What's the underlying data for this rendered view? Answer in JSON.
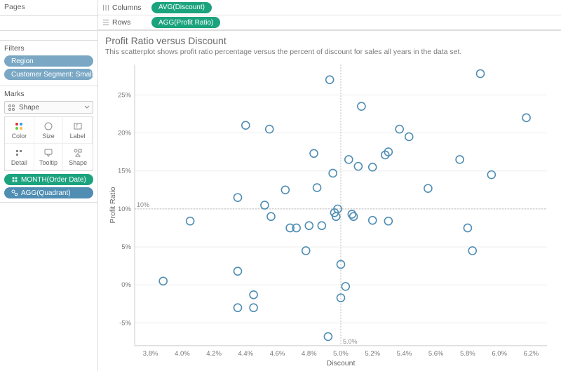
{
  "shelves": {
    "pages_label": "Pages",
    "filters_label": "Filters",
    "columns_label": "Columns",
    "rows_label": "Rows",
    "columns_pill": "AVG(Discount)",
    "rows_pill": "AGG(Profit Ratio)"
  },
  "filters": {
    "items": [
      "Region",
      "Customer Segment: Small Busin..."
    ]
  },
  "marks": {
    "title": "Marks",
    "shape_dropdown_icon_label": "Shape",
    "shape_dropdown_icon_prefix": "○○",
    "cells": [
      "Color",
      "Size",
      "Label",
      "Detail",
      "Tooltip",
      "Shape"
    ],
    "pills": [
      {
        "text": "MONTH(Order Date)",
        "color": "green",
        "icon": "color"
      },
      {
        "text": "AGG(Quadrant)",
        "color": "blue",
        "icon": "shape"
      }
    ]
  },
  "chart": {
    "title": "Profit Ratio versus Discount",
    "subtitle": "This scatterplot shows profit ratio percentage versus the percent of discount for sales all years in the data set.",
    "type": "scatter",
    "x_axis_title": "Discount",
    "y_axis_title": "Profit Ratio",
    "x_ticks": [
      3.8,
      4.0,
      4.2,
      4.4,
      4.6,
      4.8,
      5.0,
      5.2,
      5.4,
      5.6,
      5.8,
      6.0,
      6.2
    ],
    "x_tick_labels": [
      "3.8%",
      "4.0%",
      "4.2%",
      "4.4%",
      "4.6%",
      "4.8%",
      "5.0%",
      "5.2%",
      "5.4%",
      "5.6%",
      "5.8%",
      "6.0%",
      "6.2%"
    ],
    "xlim": [
      3.7,
      6.3
    ],
    "y_ticks": [
      -5,
      0,
      5,
      10,
      15,
      20,
      25
    ],
    "y_tick_labels": [
      "-5%",
      "0%",
      "5%",
      "10%",
      "15%",
      "20%",
      "25%"
    ],
    "ylim": [
      -8,
      29
    ],
    "ref_x": {
      "value": 5.0,
      "label": "5.0%"
    },
    "ref_y": {
      "value": 10.0,
      "label": "10%"
    },
    "marker_radius": 5.5,
    "marker_stroke": "#4f8db3",
    "background_color": "#ffffff",
    "points": [
      [
        3.88,
        0.5
      ],
      [
        4.05,
        8.4
      ],
      [
        4.35,
        11.5
      ],
      [
        4.35,
        1.8
      ],
      [
        4.35,
        -3.0
      ],
      [
        4.4,
        21.0
      ],
      [
        4.45,
        -3.0
      ],
      [
        4.45,
        -1.3
      ],
      [
        4.52,
        10.5
      ],
      [
        4.55,
        20.5
      ],
      [
        4.56,
        9.0
      ],
      [
        4.65,
        12.5
      ],
      [
        4.68,
        7.5
      ],
      [
        4.72,
        7.5
      ],
      [
        4.78,
        4.5
      ],
      [
        4.8,
        7.8
      ],
      [
        4.83,
        17.3
      ],
      [
        4.85,
        12.8
      ],
      [
        4.88,
        7.8
      ],
      [
        4.92,
        -6.8
      ],
      [
        4.93,
        27.0
      ],
      [
        4.95,
        14.7
      ],
      [
        4.96,
        9.5
      ],
      [
        4.97,
        9.0
      ],
      [
        4.98,
        10.0
      ],
      [
        5.0,
        2.7
      ],
      [
        5.0,
        -1.7
      ],
      [
        5.03,
        -0.2
      ],
      [
        5.05,
        16.5
      ],
      [
        5.07,
        9.3
      ],
      [
        5.08,
        9.0
      ],
      [
        5.11,
        15.6
      ],
      [
        5.13,
        23.5
      ],
      [
        5.2,
        15.5
      ],
      [
        5.2,
        8.5
      ],
      [
        5.28,
        17.1
      ],
      [
        5.3,
        17.5
      ],
      [
        5.3,
        8.4
      ],
      [
        5.37,
        20.5
      ],
      [
        5.43,
        19.5
      ],
      [
        5.55,
        12.7
      ],
      [
        5.75,
        16.5
      ],
      [
        5.8,
        7.5
      ],
      [
        5.83,
        4.5
      ],
      [
        5.88,
        27.8
      ],
      [
        5.95,
        14.5
      ],
      [
        6.17,
        22.0
      ]
    ]
  }
}
